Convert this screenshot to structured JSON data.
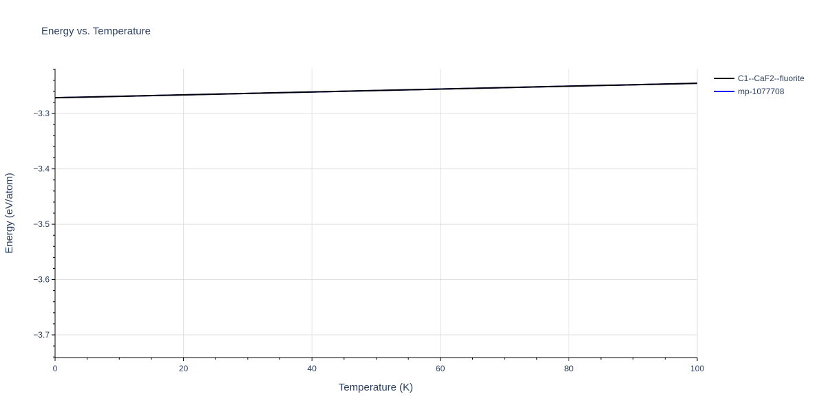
{
  "chart_data": {
    "type": "line",
    "title": "Energy vs. Temperature",
    "xlabel": "Temperature (K)",
    "ylabel": "Energy (eV/atom)",
    "xlim": [
      0,
      100
    ],
    "ylim": [
      -3.741,
      -3.219
    ],
    "xticks": [
      0,
      20,
      40,
      60,
      80,
      100
    ],
    "yticks": [
      -3.3,
      -3.4,
      -3.5,
      -3.6,
      -3.7
    ],
    "ytick_labels": [
      "−3.3",
      "−3.4",
      "−3.5",
      "−3.6",
      "−3.7"
    ],
    "grid": true,
    "legend_placement": "top-right",
    "series": [
      {
        "name": "mp-1077708",
        "color": "#0000ff",
        "x": [
          0,
          100
        ],
        "y": [
          -3.2714,
          -3.2453
        ]
      },
      {
        "name": "C1--CaF2--fluorite",
        "color": "#000000",
        "x": [
          0,
          100
        ],
        "y": [
          -3.2714,
          -3.2453
        ]
      }
    ],
    "legend_order": [
      1,
      0
    ]
  }
}
